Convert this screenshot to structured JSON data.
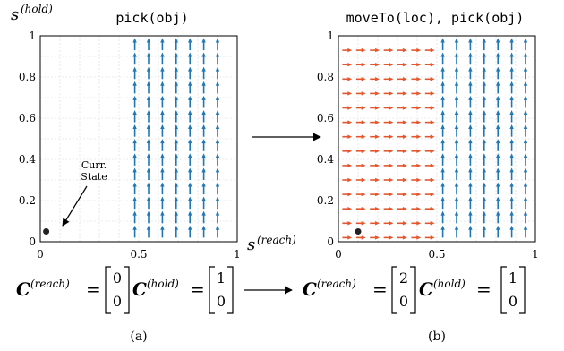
{
  "panels": [
    {
      "id": "a",
      "title": "pick(obj)",
      "yaxis_symbol": "s",
      "yaxis_sup": "(hold)",
      "xaxis_symbol": "s",
      "xaxis_sup": "(reach)",
      "y_ticks": [
        "1",
        "0.8",
        "0.6",
        "0.4",
        "0.2",
        "0"
      ],
      "x_ticks": [],
      "annotation": "Curr.\nState",
      "annotation_line1": "Curr.",
      "annotation_line2": "State",
      "current_state": {
        "reach": 0.03,
        "hold": 0.05
      },
      "up_arrow_columns": [
        0.48,
        0.55,
        0.62,
        0.69,
        0.76,
        0.83,
        0.9
      ],
      "right_arrow_columns": [],
      "caption": "(a)",
      "matrix_reach": [
        "0",
        "0"
      ],
      "matrix_hold": [
        "1",
        "0"
      ]
    },
    {
      "id": "b",
      "title": "moveTo(loc), pick(obj)",
      "y_ticks": [
        "1",
        "0.8",
        "0.6",
        "0.4",
        "0.2",
        "0"
      ],
      "x_ticks": [
        "0",
        "0.5",
        "1"
      ],
      "current_state": {
        "reach": 0.1,
        "hold": 0.05
      },
      "up_arrow_columns": [
        0.53,
        0.6,
        0.67,
        0.74,
        0.81,
        0.88,
        0.95
      ],
      "right_arrow_columns": [
        0.02,
        0.09,
        0.16,
        0.23,
        0.3,
        0.37,
        0.44
      ],
      "caption": "(b)",
      "matrix_reach": [
        "2",
        "0"
      ],
      "matrix_hold": [
        "1",
        "0"
      ]
    }
  ],
  "x_ticks_under_a": [
    "0",
    "0.5",
    "1"
  ],
  "arrow_rows": [
    0.02,
    0.09,
    0.16,
    0.23,
    0.3,
    0.37,
    0.44,
    0.51,
    0.58,
    0.65,
    0.72,
    0.79,
    0.86,
    0.93,
    0.98
  ],
  "colors": {
    "up_arrow": "#1f77b4",
    "right_arrow": "#e4572e",
    "grid": "#d8d8d8",
    "axis": "#000000"
  },
  "matrix_label": "C",
  "matrix_sup_reach": "(reach)",
  "matrix_sup_hold": "(hold)",
  "equals": "="
}
